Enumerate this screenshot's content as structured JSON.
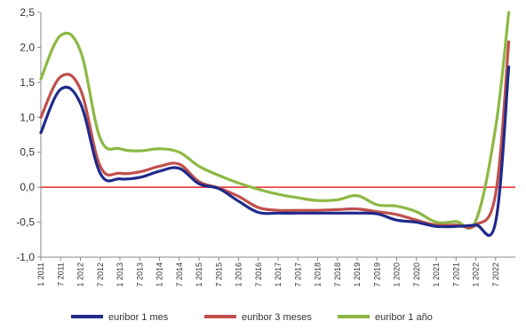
{
  "chart_data": {
    "type": "line",
    "title": "",
    "xlabel": "",
    "ylabel": "",
    "ylim": [
      -1.0,
      2.5
    ],
    "y_ticks": [
      "2,5",
      "2,0",
      "1,5",
      "1,0",
      "0,5",
      "0,0",
      "-0,5",
      "-1,0"
    ],
    "y_tick_values": [
      2.5,
      2.0,
      1.5,
      1.0,
      0.5,
      0.0,
      -0.5,
      -1.0
    ],
    "x_tick_labels": [
      "1 2011",
      "7 2011",
      "1 2012",
      "7 2012",
      "1 2013",
      "7 2013",
      "1 2014",
      "7 2014",
      "1 2015",
      "7 2015",
      "1 2016",
      "7 2016",
      "1 2017",
      "7 2017",
      "1 2018",
      "7 2018",
      "1 2019",
      "7 2019",
      "1 2020",
      "7 2020",
      "1 2021",
      "7 2021",
      "1 2022",
      "7 2022"
    ],
    "reference_line": {
      "y": 0.0,
      "color": "#e8272a"
    },
    "grid": false,
    "legend_position": "bottom",
    "x": [
      "2011-01",
      "2011-07",
      "2012-01",
      "2012-07",
      "2013-01",
      "2013-07",
      "2014-01",
      "2014-07",
      "2015-01",
      "2015-07",
      "2016-01",
      "2016-07",
      "2017-01",
      "2017-07",
      "2018-01",
      "2018-07",
      "2019-01",
      "2019-07",
      "2020-01",
      "2020-07",
      "2021-01",
      "2021-07",
      "2022-01",
      "2022-07",
      "2022-11"
    ],
    "series": [
      {
        "name": "euribor 1 mes",
        "color": "#1f2a8a",
        "values": [
          0.78,
          1.4,
          1.2,
          0.2,
          0.12,
          0.14,
          0.23,
          0.27,
          0.05,
          -0.02,
          -0.2,
          -0.36,
          -0.37,
          -0.37,
          -0.37,
          -0.37,
          -0.37,
          -0.38,
          -0.47,
          -0.5,
          -0.56,
          -0.56,
          -0.54,
          -0.5,
          1.72
        ]
      },
      {
        "name": "euribor 3 meses",
        "color": "#c0504d",
        "values": [
          1.0,
          1.58,
          1.4,
          0.3,
          0.2,
          0.22,
          0.3,
          0.33,
          0.08,
          -0.01,
          -0.13,
          -0.29,
          -0.33,
          -0.33,
          -0.33,
          -0.32,
          -0.31,
          -0.35,
          -0.39,
          -0.47,
          -0.54,
          -0.54,
          -0.54,
          -0.1,
          2.08
        ]
      },
      {
        "name": "euribor 1 año",
        "color": "#8db843",
        "values": [
          1.55,
          2.17,
          1.95,
          0.7,
          0.55,
          0.52,
          0.55,
          0.5,
          0.3,
          0.17,
          0.06,
          -0.03,
          -0.1,
          -0.15,
          -0.19,
          -0.18,
          -0.12,
          -0.25,
          -0.27,
          -0.35,
          -0.5,
          -0.49,
          -0.48,
          0.85,
          2.5
        ]
      }
    ]
  }
}
